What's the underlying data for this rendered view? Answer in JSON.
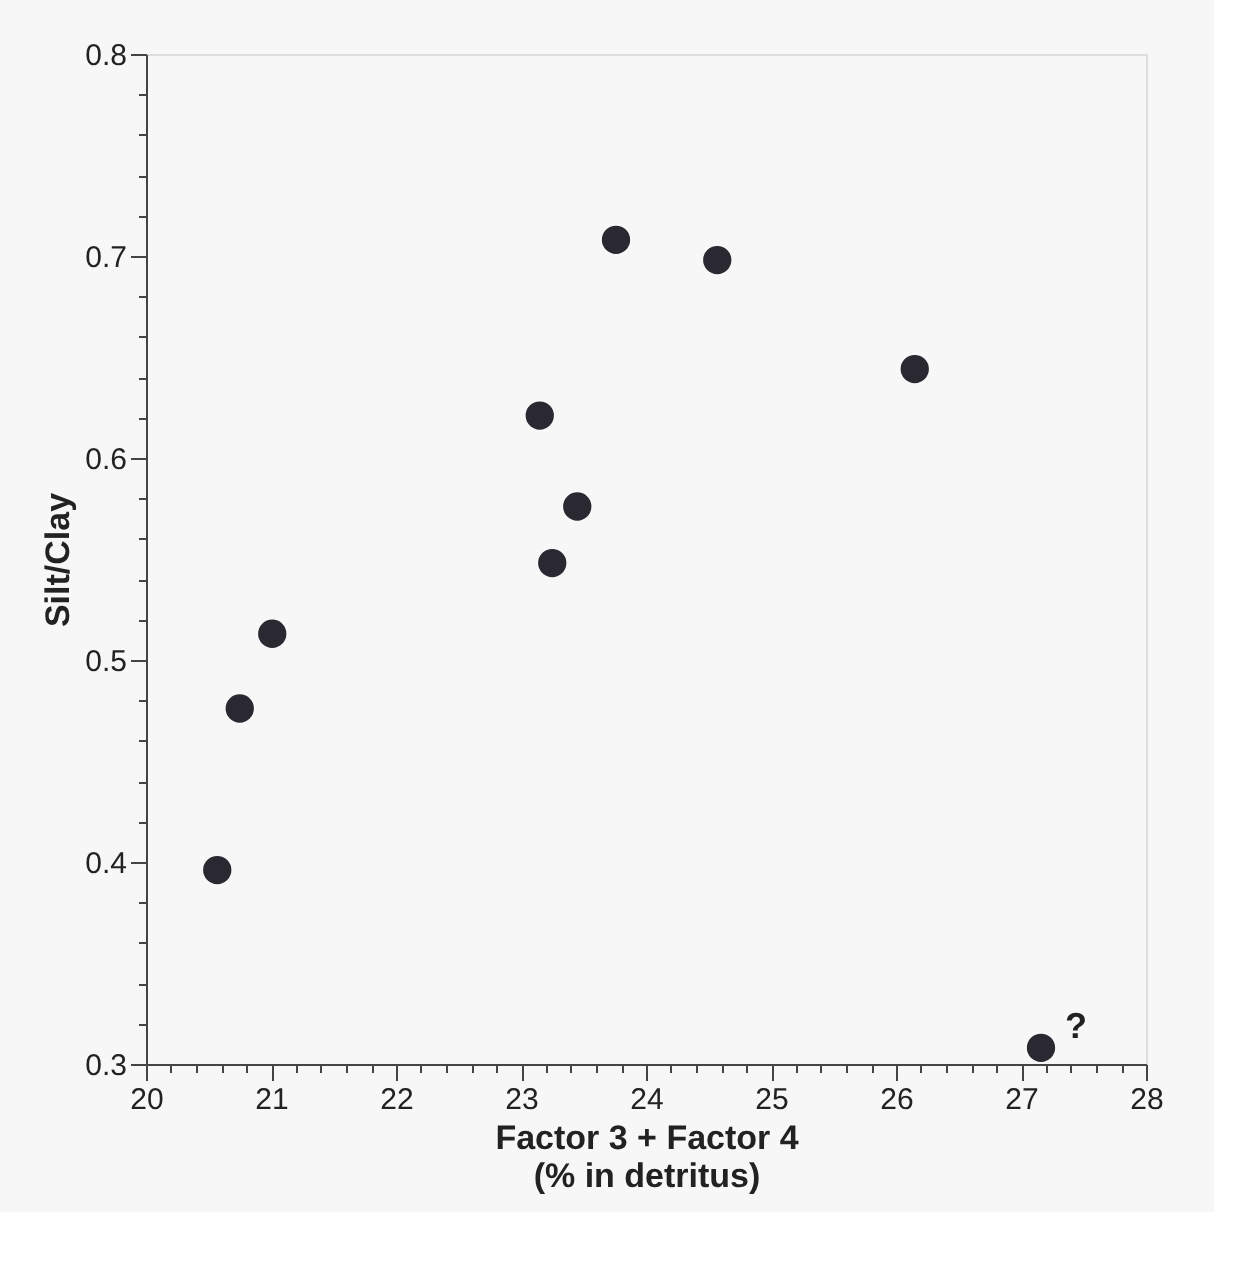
{
  "chart_data": {
    "type": "scatter",
    "xlabel": "Factor 3 + Factor 4\n(% in detritus)",
    "ylabel": "Silt/Clay",
    "x": [
      20.57,
      20.75,
      21.01,
      23.15,
      23.25,
      23.45,
      23.76,
      24.57,
      26.15,
      27.16
    ],
    "series": [
      {
        "color": "#2a2830",
        "values": [
          0.396,
          0.476,
          0.513,
          0.621,
          0.548,
          0.576,
          0.708,
          0.698,
          0.644,
          0.308
        ]
      }
    ],
    "xlim": [
      20,
      28
    ],
    "ylim": [
      0.3,
      0.8
    ],
    "xticks": [
      20,
      {
        "value": 20.2,
        "label": null
      },
      {
        "value": 20.4,
        "label": null
      },
      {
        "value": 20.6,
        "label": null
      },
      {
        "value": 20.8,
        "label": null
      },
      21,
      {
        "value": 21.2,
        "label": null
      },
      {
        "value": 21.4,
        "label": null
      },
      {
        "value": 21.6,
        "label": null
      },
      {
        "value": 21.8,
        "label": null
      },
      22,
      {
        "value": 22.2,
        "label": null
      },
      {
        "value": 22.4,
        "label": null
      },
      {
        "value": 22.6,
        "label": null
      },
      {
        "value": 22.8,
        "label": null
      },
      23,
      {
        "value": 23.2,
        "label": null
      },
      {
        "value": 23.4,
        "label": null
      },
      {
        "value": 23.6,
        "label": null
      },
      {
        "value": 23.8,
        "label": null
      },
      24,
      {
        "value": 24.2,
        "label": null
      },
      {
        "value": 24.4,
        "label": null
      },
      {
        "value": 24.6,
        "label": null
      },
      {
        "value": 24.8,
        "label": null
      },
      25,
      {
        "value": 25.2,
        "label": null
      },
      {
        "value": 25.4,
        "label": null
      },
      {
        "value": 25.6,
        "label": null
      },
      {
        "value": 25.8,
        "label": null
      },
      26,
      {
        "value": 26.2,
        "label": null
      },
      {
        "value": 26.4,
        "label": null
      },
      {
        "value": 26.6,
        "label": null
      },
      {
        "value": 26.8,
        "label": null
      },
      27,
      {
        "value": 27.2,
        "label": null
      },
      {
        "value": 27.4,
        "label": null
      },
      {
        "value": 27.6,
        "label": null
      },
      {
        "value": 27.8,
        "label": null
      },
      28
    ],
    "yticks": [
      0.3,
      {
        "value": 0.32,
        "label": null
      },
      {
        "value": 0.34,
        "label": null
      },
      {
        "value": 0.36,
        "label": null
      },
      {
        "value": 0.38,
        "label": null
      },
      0.4,
      {
        "value": 0.42,
        "label": null
      },
      {
        "value": 0.44,
        "label": null
      },
      {
        "value": 0.46,
        "label": null
      },
      {
        "value": 0.48,
        "label": null
      },
      0.5,
      {
        "value": 0.52,
        "label": null
      },
      {
        "value": 0.54,
        "label": null
      },
      {
        "value": 0.56,
        "label": null
      },
      {
        "value": 0.58,
        "label": null
      },
      0.6,
      {
        "value": 0.62,
        "label": null
      },
      {
        "value": 0.64,
        "label": null
      },
      {
        "value": 0.66,
        "label": null
      },
      {
        "value": 0.68,
        "label": null
      },
      0.7,
      {
        "value": 0.72,
        "label": null
      },
      {
        "value": 0.74,
        "label": null
      },
      {
        "value": 0.76,
        "label": null
      },
      {
        "value": 0.78,
        "label": null
      },
      0.8
    ],
    "marker": "circle",
    "annotations": [
      {
        "text": "?",
        "x": 27.16,
        "y": 0.308
      }
    ]
  }
}
